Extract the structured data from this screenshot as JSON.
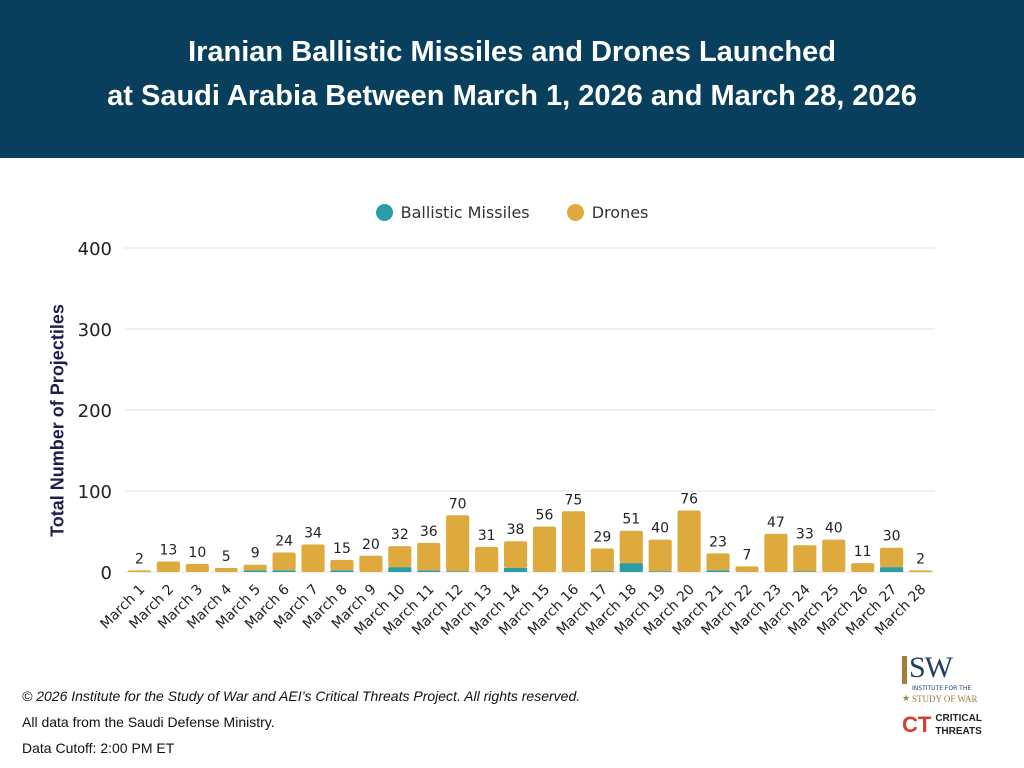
{
  "header": {
    "title_line1": "Iranian Ballistic Missiles and Drones Launched",
    "title_line2": "at Saudi Arabia Between March 1, 2026 and March 28, 2026"
  },
  "footer": {
    "copyright": "© 2026 Institute for the Study of War and AEI’s Critical Threats Project. All rights reserved.",
    "source": "All data from the Saudi Defense Ministry.",
    "cutoff": "Data Cutoff: 2:00 PM ET"
  },
  "logos": {
    "isw": "ISW",
    "isw_sub1": "INSTITUTE FOR THE",
    "isw_sub2": "STUDY OF WAR",
    "ct1": "CRITICAL",
    "ct2": "THREATS"
  },
  "chart_data": {
    "type": "bar",
    "stacked": true,
    "ylabel": "Total Number of Projectiles",
    "xlabel": "",
    "ylim": [
      0,
      400
    ],
    "yticks": [
      0,
      100,
      200,
      300,
      400
    ],
    "grid": true,
    "legend_position": "top",
    "categories": [
      "March 1",
      "March 2",
      "March 3",
      "March 4",
      "March 5",
      "March 6",
      "March 7",
      "March 8",
      "March 9",
      "March 10",
      "March 11",
      "March 12",
      "March 13",
      "March 14",
      "March 15",
      "March 16",
      "March 17",
      "March 18",
      "March 19",
      "March 20",
      "March 21",
      "March 22",
      "March 23",
      "March 24",
      "March 25",
      "March 26",
      "March 27",
      "March 28"
    ],
    "totals": [
      2,
      13,
      10,
      5,
      9,
      24,
      34,
      15,
      20,
      32,
      36,
      70,
      31,
      38,
      56,
      75,
      29,
      51,
      40,
      76,
      23,
      7,
      47,
      33,
      40,
      11,
      30,
      2
    ],
    "series": [
      {
        "name": "Ballistic Missiles",
        "color": "#2a9da6",
        "values": [
          0,
          0,
          0,
          0,
          2,
          2,
          0,
          2,
          0,
          6,
          2,
          1,
          0,
          5,
          0,
          0,
          1,
          11,
          1,
          0,
          2,
          0,
          0,
          1,
          0,
          0,
          6,
          0
        ]
      },
      {
        "name": "Drones",
        "color": "#dea93d",
        "values": [
          2,
          13,
          10,
          5,
          7,
          22,
          34,
          13,
          20,
          26,
          34,
          69,
          31,
          33,
          56,
          75,
          28,
          40,
          39,
          76,
          21,
          7,
          47,
          32,
          40,
          11,
          24,
          2
        ]
      }
    ]
  }
}
